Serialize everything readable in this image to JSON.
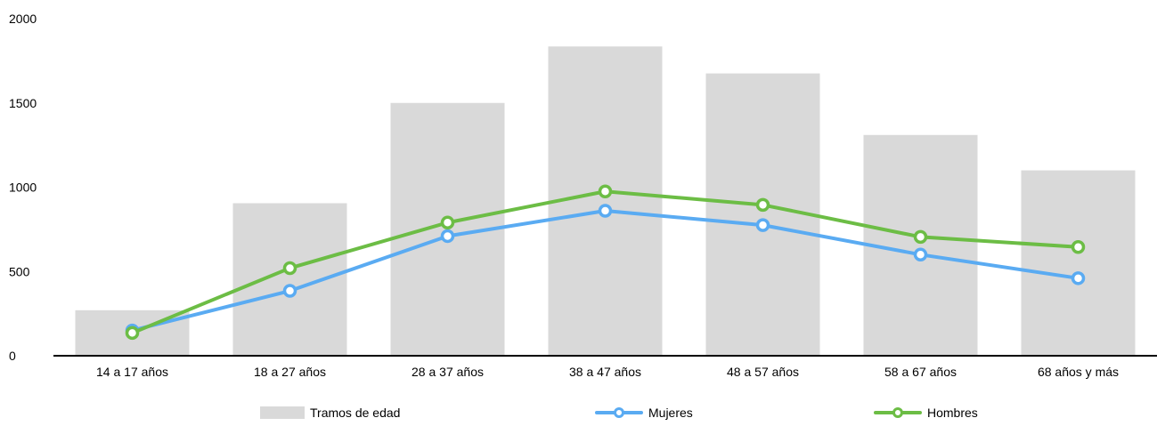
{
  "chart_data": {
    "type": "bar",
    "categories": [
      "14 a 17 años",
      "18 a 27 años",
      "28 a 37 años",
      "38 a 47 años",
      "48 a 57 años",
      "58 a 67 años",
      "68 años y más"
    ],
    "series": [
      {
        "name": "Tramos de edad",
        "type": "bar",
        "color": "#d9d9d9",
        "values": [
          270,
          905,
          1500,
          1835,
          1675,
          1310,
          1100
        ]
      },
      {
        "name": "Mujeres",
        "type": "line",
        "color": "#5aabf2",
        "values": [
          150,
          385,
          710,
          860,
          775,
          600,
          460
        ]
      },
      {
        "name": "Hombres",
        "type": "line",
        "color": "#6cbd45",
        "values": [
          135,
          520,
          790,
          975,
          895,
          705,
          645
        ]
      }
    ],
    "yticks": [
      "0",
      "500",
      "1000",
      "1500",
      "2000"
    ],
    "ylim": [
      0,
      2000
    ],
    "title": "",
    "xlabel": "",
    "ylabel": "",
    "grid": false,
    "legend_position": "bottom"
  }
}
